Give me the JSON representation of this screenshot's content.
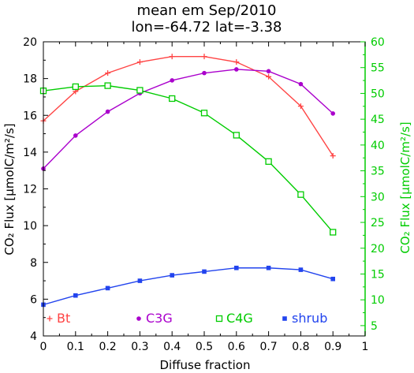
{
  "chart_data": {
    "type": "line",
    "title_line1": "mean em Sep/2010",
    "title_line2": "lon=-64.72 lat=-3.38",
    "xlabel": "Diffuse fraction",
    "ylabel_left": "CO₂ Flux [μmolC/m²/s]",
    "ylabel_right": "CO₂ Flux [μmolC/m²/s]",
    "xlim": [
      0,
      1
    ],
    "ylim_left": [
      4,
      20
    ],
    "ylim_right": [
      3,
      60
    ],
    "x_ticks": [
      "0",
      "0.1",
      "0.2",
      "0.3",
      "0.4",
      "0.5",
      "0.6",
      "0.7",
      "0.8",
      "0.9",
      "1"
    ],
    "y_ticks_left": [
      "4",
      "6",
      "8",
      "10",
      "12",
      "14",
      "16",
      "18",
      "20"
    ],
    "y_ticks_right": [
      "5",
      "10",
      "15",
      "20",
      "25",
      "30",
      "35",
      "40",
      "45",
      "50",
      "55",
      "60"
    ],
    "x": [
      0,
      0.1,
      0.2,
      0.3,
      0.4,
      0.5,
      0.6,
      0.7,
      0.8,
      0.9
    ],
    "series": [
      {
        "name": "Bt",
        "axis": "left",
        "color": "#ff4444",
        "marker": "plus",
        "values": [
          15.7,
          17.3,
          18.3,
          18.9,
          19.2,
          19.2,
          18.9,
          18.1,
          16.5,
          13.8
        ]
      },
      {
        "name": "C3G",
        "axis": "left",
        "color": "#aa00cc",
        "marker": "dot",
        "values": [
          13.1,
          14.9,
          16.2,
          17.2,
          17.9,
          18.3,
          18.5,
          18.4,
          17.7,
          16.1
        ]
      },
      {
        "name": "C4G",
        "axis": "right",
        "color": "#00cc00",
        "marker": "square",
        "values": [
          50.5,
          51.3,
          51.5,
          50.6,
          49.0,
          46.2,
          41.9,
          36.8,
          30.4,
          23.1
        ]
      },
      {
        "name": "shrub",
        "axis": "left",
        "color": "#2244ee",
        "marker": "fsquare",
        "values": [
          5.7,
          6.2,
          6.6,
          7.0,
          7.3,
          7.5,
          7.7,
          7.7,
          7.6,
          7.1
        ]
      }
    ],
    "legend_placement": "bottom",
    "grid": false,
    "colors": {
      "left_axis": "#000000",
      "right_axis": "#00cc00"
    }
  }
}
